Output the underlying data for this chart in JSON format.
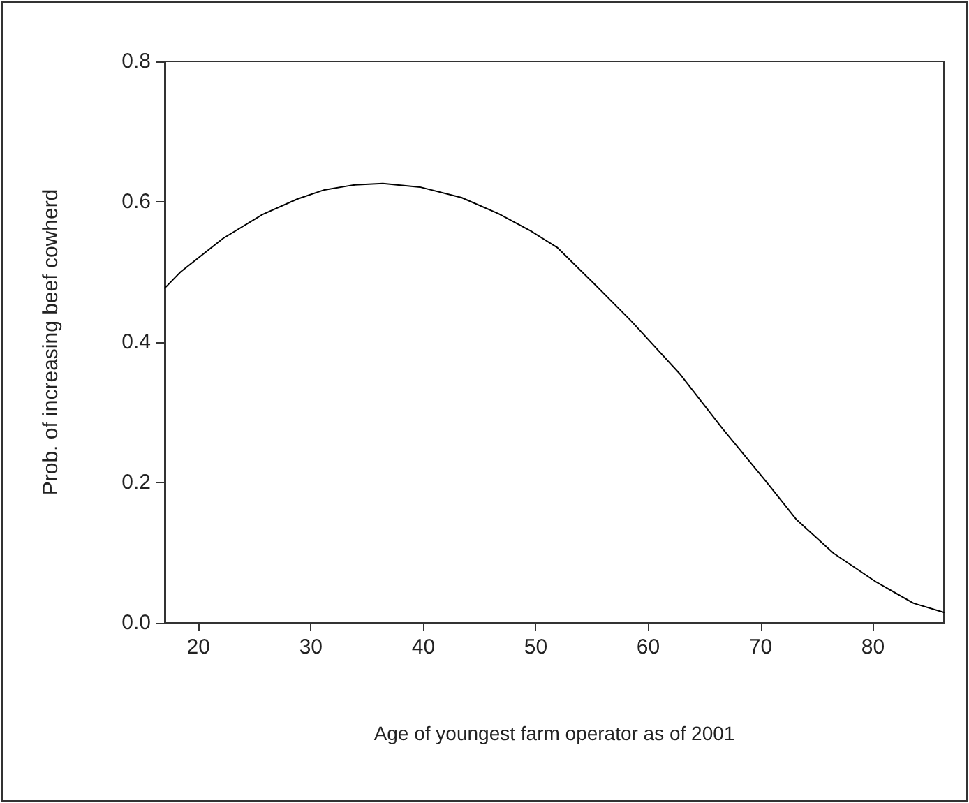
{
  "chart_data": {
    "type": "line",
    "xlabel": "Age of youngest farm operator as of 2001",
    "ylabel": "Prob. of increasing beef cowherd",
    "x": [
      17,
      18.4,
      22.2,
      25.7,
      28.8,
      31.2,
      33.8,
      36.4,
      39.7,
      43.4,
      46.7,
      49.6,
      51.9,
      55.2,
      58.5,
      62.8,
      66.6,
      70.4,
      73.2,
      76.5,
      80.3,
      83.6,
      86.3
    ],
    "series": [
      {
        "color": "#000000",
        "values": [
          0.477,
          0.5,
          0.548,
          0.582,
          0.604,
          0.617,
          0.624,
          0.626,
          0.621,
          0.606,
          0.583,
          0.558,
          0.535,
          0.483,
          0.43,
          0.355,
          0.277,
          0.203,
          0.147,
          0.099,
          0.058,
          0.028,
          0.015
        ]
      }
    ],
    "xlim": [
      17,
      86.3
    ],
    "xticks": [
      20,
      30,
      40,
      50,
      60,
      70,
      80
    ],
    "ylim": [
      0,
      0.8
    ],
    "yticks": [
      {
        "value": 0,
        "label": "0.0"
      },
      {
        "value": 0.2,
        "label": "0.2"
      },
      {
        "value": 0.4,
        "label": "0.4"
      },
      {
        "value": 0.6,
        "label": "0.6"
      },
      {
        "value": 0.8,
        "label": "0.8"
      }
    ],
    "marker": "none",
    "line_style": "solid"
  }
}
